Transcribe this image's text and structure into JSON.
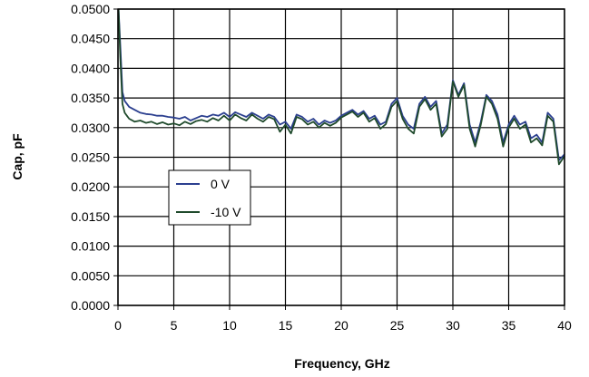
{
  "chart_data": {
    "type": "line",
    "xlabel": "Frequency, GHz",
    "ylabel": "Cap, pF",
    "xlim": [
      0,
      40
    ],
    "ylim": [
      0,
      0.05
    ],
    "x_ticks": [
      "0",
      "5",
      "10",
      "15",
      "20",
      "25",
      "30",
      "35",
      "40"
    ],
    "y_ticks": [
      "0.0000",
      "0.0050",
      "0.0100",
      "0.0150",
      "0.0200",
      "0.0250",
      "0.0300",
      "0.0350",
      "0.0400",
      "0.0450",
      "0.0500"
    ],
    "grid": true,
    "legend_position": "left-center",
    "series": [
      {
        "name": "0 V",
        "color": "#2b3f8f",
        "x": [
          0.05,
          0.2,
          0.4,
          0.6,
          0.8,
          1.0,
          1.5,
          2.0,
          2.5,
          3.0,
          3.5,
          4.0,
          4.5,
          5.0,
          5.5,
          6.0,
          6.5,
          7.0,
          7.5,
          8.0,
          8.5,
          9.0,
          9.5,
          10.0,
          10.5,
          11.0,
          11.5,
          12.0,
          12.5,
          13.0,
          13.5,
          14.0,
          14.5,
          15.0,
          15.5,
          16.0,
          16.5,
          17.0,
          17.5,
          18.0,
          18.5,
          19.0,
          19.5,
          20.0,
          20.5,
          21.0,
          21.5,
          22.0,
          22.5,
          23.0,
          23.5,
          24.0,
          24.5,
          25.0,
          25.5,
          26.0,
          26.5,
          27.0,
          27.5,
          28.0,
          28.5,
          29.0,
          29.5,
          30.0,
          30.5,
          31.0,
          31.5,
          32.0,
          32.5,
          33.0,
          33.5,
          34.0,
          34.5,
          35.0,
          35.5,
          36.0,
          36.5,
          37.0,
          37.5,
          38.0,
          38.5,
          39.0,
          39.5,
          40.0
        ],
        "values": [
          0.05,
          0.044,
          0.036,
          0.0345,
          0.034,
          0.0335,
          0.033,
          0.0325,
          0.0323,
          0.0322,
          0.032,
          0.032,
          0.0318,
          0.0317,
          0.0315,
          0.0318,
          0.0312,
          0.0316,
          0.032,
          0.0318,
          0.0322,
          0.032,
          0.0325,
          0.0318,
          0.0326,
          0.0322,
          0.0318,
          0.0325,
          0.032,
          0.0315,
          0.0322,
          0.0318,
          0.0305,
          0.031,
          0.0298,
          0.0322,
          0.0318,
          0.031,
          0.0315,
          0.0305,
          0.0312,
          0.0308,
          0.0312,
          0.032,
          0.0325,
          0.033,
          0.0322,
          0.0328,
          0.0315,
          0.032,
          0.0305,
          0.031,
          0.034,
          0.035,
          0.032,
          0.0305,
          0.0298,
          0.034,
          0.0352,
          0.0335,
          0.0345,
          0.029,
          0.0305,
          0.038,
          0.0355,
          0.0375,
          0.0305,
          0.0275,
          0.031,
          0.0355,
          0.0345,
          0.0322,
          0.0275,
          0.0305,
          0.032,
          0.0305,
          0.031,
          0.0282,
          0.0288,
          0.0275,
          0.0325,
          0.0315,
          0.0245,
          0.0255
        ]
      },
      {
        "name": "-10 V",
        "color": "#1f4a2c",
        "x": [
          0.05,
          0.2,
          0.4,
          0.6,
          0.8,
          1.0,
          1.5,
          2.0,
          2.5,
          3.0,
          3.5,
          4.0,
          4.5,
          5.0,
          5.5,
          6.0,
          6.5,
          7.0,
          7.5,
          8.0,
          8.5,
          9.0,
          9.5,
          10.0,
          10.5,
          11.0,
          11.5,
          12.0,
          12.5,
          13.0,
          13.5,
          14.0,
          14.5,
          15.0,
          15.5,
          16.0,
          16.5,
          17.0,
          17.5,
          18.0,
          18.5,
          19.0,
          19.5,
          20.0,
          20.5,
          21.0,
          21.5,
          22.0,
          22.5,
          23.0,
          23.5,
          24.0,
          24.5,
          25.0,
          25.5,
          26.0,
          26.5,
          27.0,
          27.5,
          28.0,
          28.5,
          29.0,
          29.5,
          30.0,
          30.5,
          31.0,
          31.5,
          32.0,
          32.5,
          33.0,
          33.5,
          34.0,
          34.5,
          35.0,
          35.5,
          36.0,
          36.5,
          37.0,
          37.5,
          38.0,
          38.5,
          39.0,
          39.5,
          40.0
        ],
        "values": [
          0.05,
          0.042,
          0.034,
          0.0325,
          0.032,
          0.0315,
          0.031,
          0.0312,
          0.0308,
          0.031,
          0.0306,
          0.0309,
          0.0305,
          0.0307,
          0.0304,
          0.031,
          0.0306,
          0.0311,
          0.0313,
          0.031,
          0.0316,
          0.0312,
          0.032,
          0.0312,
          0.0322,
          0.0316,
          0.0312,
          0.0322,
          0.0315,
          0.031,
          0.0318,
          0.0314,
          0.0293,
          0.0305,
          0.029,
          0.0318,
          0.0314,
          0.0305,
          0.031,
          0.03,
          0.0308,
          0.0303,
          0.0308,
          0.0317,
          0.0322,
          0.0327,
          0.0318,
          0.0325,
          0.031,
          0.0316,
          0.0298,
          0.0306,
          0.0335,
          0.0345,
          0.0315,
          0.0298,
          0.029,
          0.0335,
          0.0348,
          0.033,
          0.034,
          0.0285,
          0.0298,
          0.0378,
          0.0352,
          0.0372,
          0.0298,
          0.0268,
          0.0305,
          0.0352,
          0.034,
          0.0315,
          0.0268,
          0.03,
          0.0315,
          0.0298,
          0.0305,
          0.0275,
          0.0282,
          0.027,
          0.032,
          0.031,
          0.0238,
          0.0252
        ]
      }
    ]
  }
}
